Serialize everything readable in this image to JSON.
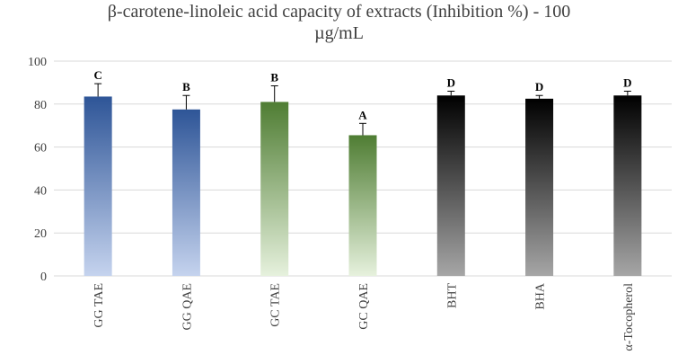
{
  "chart_data": {
    "type": "bar",
    "title_line1": "β-carotene-linoleic acid capacity of extracts (Inhibition %) - 100",
    "title_line2": "µg/mL",
    "xlabel": "",
    "ylabel": "",
    "ylim": [
      0,
      100
    ],
    "yticks": [
      "0",
      "20",
      "40",
      "60",
      "80",
      "100"
    ],
    "grid": true,
    "legend": "none",
    "categories": [
      "GG TAE",
      "GG QAE",
      "GC TAE",
      "GC QAE",
      "BHT",
      "BHA",
      "α-Tocopherol"
    ],
    "values": [
      83.5,
      77.5,
      81,
      65.5,
      84,
      82.5,
      84
    ],
    "errors": [
      6,
      6.5,
      7.5,
      5.5,
      2,
      1.5,
      2
    ],
    "letters": [
      "C",
      "B",
      "B",
      "A",
      "D",
      "D",
      "D"
    ],
    "colors": {
      "blue_top": "#2e5597",
      "blue_bottom": "#c5d3ee",
      "green_top": "#4f7d33",
      "green_bottom": "#e6f1dd",
      "black_top": "#000000",
      "black_bottom": "#a6a6a6",
      "grid": "#d9d9d9",
      "axis_text": "#404040"
    },
    "bar_groups": [
      "blue",
      "blue",
      "green",
      "green",
      "black",
      "black",
      "black"
    ]
  }
}
